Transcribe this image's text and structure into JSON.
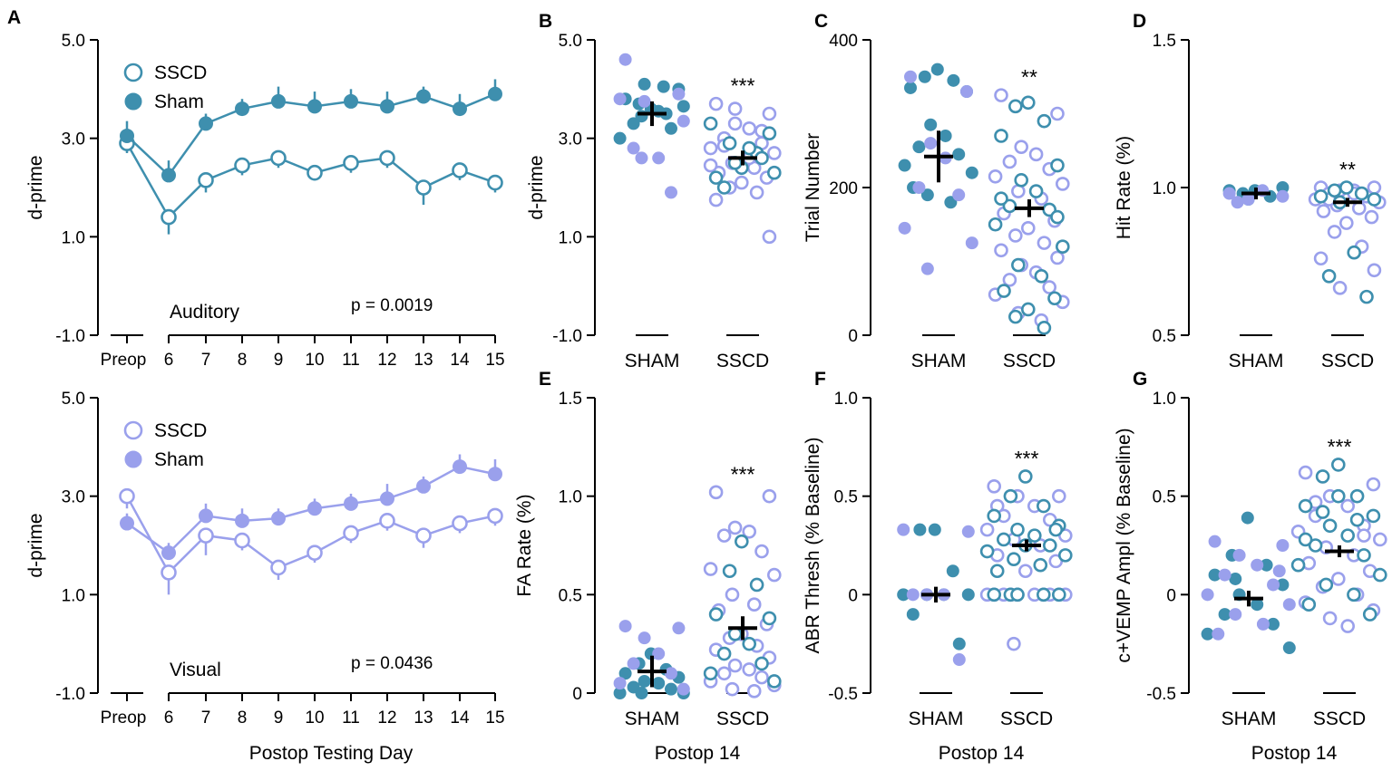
{
  "colors": {
    "teal": "#3e8fae",
    "lavender": "#9aa0ec",
    "axis": "#000000",
    "mean": "#000000"
  },
  "legend": {
    "ssc_label": "SSCD",
    "sham_label": "Sham"
  },
  "chart_data": [
    {
      "id": "A_top",
      "type": "line",
      "panel_label": "A",
      "title": "Auditory",
      "annotation": "p = 0.0019",
      "xlabel": "",
      "ylabel": "d-prime",
      "ylim": [
        -1.0,
        5.0
      ],
      "yticks": [
        -1.0,
        1.0,
        3.0,
        5.0
      ],
      "ytick_labels": [
        "-1.0",
        "1.0",
        "3.0",
        "5.0"
      ],
      "categories": [
        "Preop",
        "6",
        "7",
        "8",
        "9",
        "10",
        "11",
        "12",
        "13",
        "14",
        "15"
      ],
      "color": "teal",
      "series": [
        {
          "name": "SSCD",
          "filled": false,
          "values": [
            2.9,
            1.4,
            2.15,
            2.45,
            2.6,
            2.3,
            2.5,
            2.6,
            2.0,
            2.35,
            2.1
          ],
          "err": [
            0.2,
            0.35,
            0.25,
            0.2,
            0.2,
            0.15,
            0.2,
            0.2,
            0.35,
            0.2,
            0.2
          ]
        },
        {
          "name": "Sham",
          "filled": true,
          "values": [
            3.05,
            2.25,
            3.3,
            3.6,
            3.75,
            3.65,
            3.75,
            3.65,
            3.85,
            3.6,
            3.9
          ],
          "err": [
            0.3,
            0.3,
            0.2,
            0.2,
            0.3,
            0.3,
            0.25,
            0.3,
            0.2,
            0.3,
            0.3
          ]
        }
      ]
    },
    {
      "id": "A_bottom",
      "type": "line",
      "panel_label": "",
      "title": "Visual",
      "annotation": "p = 0.0436",
      "xlabel": "Postop Testing Day",
      "ylabel": "d-prime",
      "ylim": [
        -1.0,
        5.0
      ],
      "yticks": [
        -1.0,
        1.0,
        3.0,
        5.0
      ],
      "ytick_labels": [
        "-1.0",
        "1.0",
        "3.0",
        "5.0"
      ],
      "categories": [
        "Preop",
        "6",
        "7",
        "8",
        "9",
        "10",
        "11",
        "12",
        "13",
        "14",
        "15"
      ],
      "color": "lavender",
      "series": [
        {
          "name": "SSCD",
          "filled": false,
          "values": [
            3.0,
            1.45,
            2.2,
            2.1,
            1.55,
            1.85,
            2.25,
            2.5,
            2.2,
            2.45,
            2.6
          ],
          "err": [
            0.25,
            0.45,
            0.4,
            0.2,
            0.25,
            0.2,
            0.2,
            0.2,
            0.25,
            0.2,
            0.2
          ]
        },
        {
          "name": "Sham",
          "filled": true,
          "values": [
            2.45,
            1.85,
            2.6,
            2.5,
            2.55,
            2.75,
            2.85,
            2.95,
            3.2,
            3.6,
            3.45
          ],
          "err": [
            0.2,
            0.2,
            0.25,
            0.25,
            0.2,
            0.2,
            0.2,
            0.3,
            0.2,
            0.25,
            0.3
          ]
        }
      ]
    },
    {
      "id": "B",
      "type": "scatter",
      "panel_label": "B",
      "ylabel": "d-prime",
      "xlabel": "",
      "ylim": [
        -1.0,
        5.0
      ],
      "yticks": [
        -1.0,
        1.0,
        3.0,
        5.0
      ],
      "ytick_labels": [
        "-1.0",
        "1.0",
        "3.0",
        "5.0"
      ],
      "groups": [
        {
          "name": "SHAM",
          "mean": 3.5,
          "sem": 0.25,
          "teal_filled": [
            3.6,
            3.7,
            3.5,
            3.8,
            4.0,
            4.1,
            3.55,
            3.3,
            3.2,
            3.0,
            3.65,
            3.45,
            4.05
          ],
          "lav_filled": [
            4.6,
            3.9,
            3.75,
            2.6,
            2.8,
            1.9,
            3.8,
            3.35,
            2.6
          ]
        },
        {
          "name": "SSCD",
          "mean": 2.6,
          "sem": 0.15,
          "significance": "***",
          "teal_open": [
            2.4,
            2.9,
            2.7,
            2.2,
            3.1,
            2.5,
            2.8,
            2.0,
            2.6,
            3.3,
            2.3
          ],
          "lav_open": [
            3.7,
            3.5,
            3.3,
            3.2,
            3.0,
            2.9,
            2.8,
            2.7,
            2.5,
            2.4,
            2.3,
            2.2,
            2.1,
            2.0,
            1.9,
            1.75,
            1.0,
            3.6,
            2.6,
            2.85,
            3.15,
            2.45
          ]
        }
      ]
    },
    {
      "id": "C",
      "type": "scatter",
      "panel_label": "C",
      "ylabel": "Trial Number",
      "xlabel": "",
      "ylim": [
        0,
        400
      ],
      "yticks": [
        0,
        200,
        400
      ],
      "ytick_labels": [
        "0",
        "200",
        "400"
      ],
      "groups": [
        {
          "name": "SHAM",
          "mean": 242,
          "sem": 35,
          "teal_filled": [
            360,
            350,
            345,
            335,
            330,
            285,
            270,
            255,
            245,
            230,
            220,
            190,
            180,
            200
          ],
          "lav_filled": [
            350,
            330,
            260,
            240,
            200,
            190,
            145,
            125,
            90
          ]
        },
        {
          "name": "SSCD",
          "mean": 172,
          "sem": 12,
          "significance": "**",
          "teal_open": [
            315,
            310,
            290,
            270,
            230,
            210,
            195,
            175,
            170,
            150,
            120,
            95,
            80,
            60,
            50,
            35,
            25,
            10,
            185,
            160
          ],
          "lav_open": [
            325,
            300,
            255,
            245,
            235,
            225,
            215,
            205,
            195,
            185,
            165,
            155,
            145,
            135,
            125,
            115,
            105,
            95,
            85,
            75,
            65,
            55,
            45,
            30,
            20
          ]
        }
      ]
    },
    {
      "id": "D",
      "type": "scatter",
      "panel_label": "D",
      "ylabel": "Hit Rate (%)",
      "xlabel": "",
      "ylim": [
        0.5,
        1.5
      ],
      "yticks": [
        0.5,
        1.0,
        1.5
      ],
      "ytick_labels": [
        "0.5",
        "1.0",
        "1.5"
      ],
      "groups": [
        {
          "name": "SHAM",
          "mean": 0.98,
          "sem": 0.02,
          "teal_filled": [
            0.99,
            0.98,
            0.97,
            0.99,
            1.0,
            0.96
          ],
          "lav_filled": [
            0.98,
            0.97,
            0.96,
            0.99,
            0.95
          ]
        },
        {
          "name": "SSCD",
          "mean": 0.95,
          "sem": 0.015,
          "significance": "**",
          "teal_open": [
            1.0,
            0.99,
            0.98,
            0.97,
            0.96,
            0.95,
            0.78,
            0.7,
            0.63
          ],
          "lav_open": [
            1.0,
            1.0,
            0.99,
            0.99,
            0.98,
            0.97,
            0.96,
            0.95,
            0.94,
            0.93,
            0.92,
            0.9,
            0.88,
            0.85,
            0.8,
            0.76,
            0.72,
            0.66,
            0.98,
            0.96
          ]
        }
      ]
    },
    {
      "id": "E",
      "type": "scatter",
      "panel_label": "E",
      "ylabel": "FA Rate (%)",
      "xlabel": "Postop 14",
      "ylim": [
        0,
        1.5
      ],
      "yticks": [
        0,
        0.5,
        1.0,
        1.5
      ],
      "ytick_labels": [
        "0",
        "0.5",
        "1.0",
        "1.5"
      ],
      "groups": [
        {
          "name": "SHAM",
          "mean": 0.11,
          "sem": 0.08,
          "teal_filled": [
            0.2,
            0.15,
            0.12,
            0.1,
            0.08,
            0.06,
            0.05,
            0.03,
            0.02,
            0.0,
            0.0,
            0.0
          ],
          "lav_filled": [
            0.34,
            0.33,
            0.28,
            0.2,
            0.15,
            0.1,
            0.05,
            0.02
          ]
        },
        {
          "name": "SSCD",
          "mean": 0.33,
          "sem": 0.06,
          "significance": "***",
          "teal_open": [
            0.77,
            0.62,
            0.55,
            0.4,
            0.38,
            0.3,
            0.25,
            0.2,
            0.15,
            0.1,
            0.06
          ],
          "lav_open": [
            1.02,
            1.0,
            0.84,
            0.82,
            0.8,
            0.72,
            0.63,
            0.6,
            0.5,
            0.45,
            0.42,
            0.35,
            0.3,
            0.28,
            0.24,
            0.22,
            0.18,
            0.14,
            0.12,
            0.1,
            0.08,
            0.06,
            0.04,
            0.02,
            0.01
          ]
        }
      ]
    },
    {
      "id": "F",
      "type": "scatter",
      "panel_label": "F",
      "ylabel": "ABR Thresh (% Baseline)",
      "xlabel": "Postop 14",
      "ylim": [
        -0.5,
        1.0
      ],
      "yticks": [
        -0.5,
        0,
        0.5,
        1.0
      ],
      "ytick_labels": [
        "-0.5",
        "0",
        "0.5",
        "1.0"
      ],
      "groups": [
        {
          "name": "SHAM",
          "mean": 0.0,
          "sem": 0.04,
          "teal_filled": [
            0.33,
            0.33,
            0.12,
            0.0,
            0.0,
            0.0,
            0.0,
            -0.1,
            -0.25
          ],
          "lav_filled": [
            0.33,
            0.32,
            0.0,
            0.0,
            0.0,
            -0.33
          ]
        },
        {
          "name": "SSCD",
          "mean": 0.25,
          "sem": 0.03,
          "significance": "***",
          "teal_open": [
            0.6,
            0.5,
            0.45,
            0.4,
            0.35,
            0.33,
            0.3,
            0.28,
            0.25,
            0.22,
            0.2,
            0.18,
            0.15,
            0.12,
            0.33,
            0.25,
            0.0,
            0.0,
            0.0,
            0.0,
            0.0
          ],
          "lav_open": [
            0.55,
            0.5,
            0.5,
            0.45,
            0.4,
            0.38,
            0.33,
            0.3,
            0.28,
            0.25,
            0.2,
            0.17,
            0.12,
            0.0,
            0.0,
            0.0,
            0.0,
            0.0,
            0.0,
            0.0,
            0.0,
            0.0,
            0.0,
            -0.25,
            0.25,
            0.45
          ]
        }
      ]
    },
    {
      "id": "G",
      "type": "scatter",
      "panel_label": "G",
      "ylabel": "c+VEMP Ampl (% Baseline)",
      "xlabel": "Postop 14",
      "ylim": [
        -0.5,
        1.0
      ],
      "yticks": [
        -0.5,
        0,
        0.5,
        1.0
      ],
      "ytick_labels": [
        "-0.5",
        "0",
        "0.5",
        "1.0"
      ],
      "groups": [
        {
          "name": "SHAM",
          "mean": -0.02,
          "sem": 0.04,
          "teal_filled": [
            0.39,
            0.2,
            0.15,
            0.1,
            0.05,
            0.0,
            -0.05,
            -0.1,
            -0.15,
            -0.2,
            -0.27,
            0.08
          ],
          "lav_filled": [
            0.27,
            0.25,
            0.2,
            0.15,
            0.1,
            0.05,
            0.0,
            -0.05,
            -0.1,
            -0.15,
            -0.2,
            0.12
          ]
        },
        {
          "name": "SSCD",
          "mean": 0.22,
          "sem": 0.03,
          "significance": "***",
          "teal_open": [
            0.66,
            0.6,
            0.5,
            0.45,
            0.4,
            0.35,
            0.3,
            0.25,
            0.2,
            0.15,
            0.1,
            0.05,
            0.0,
            -0.05,
            -0.1,
            0.5,
            0.42,
            0.38,
            0.28
          ],
          "lav_open": [
            0.62,
            0.56,
            0.5,
            0.45,
            0.4,
            0.35,
            0.32,
            0.28,
            0.24,
            0.2,
            0.16,
            0.12,
            0.08,
            0.04,
            0.0,
            -0.04,
            -0.08,
            -0.12,
            -0.16,
            0.47,
            0.3
          ]
        }
      ]
    }
  ]
}
